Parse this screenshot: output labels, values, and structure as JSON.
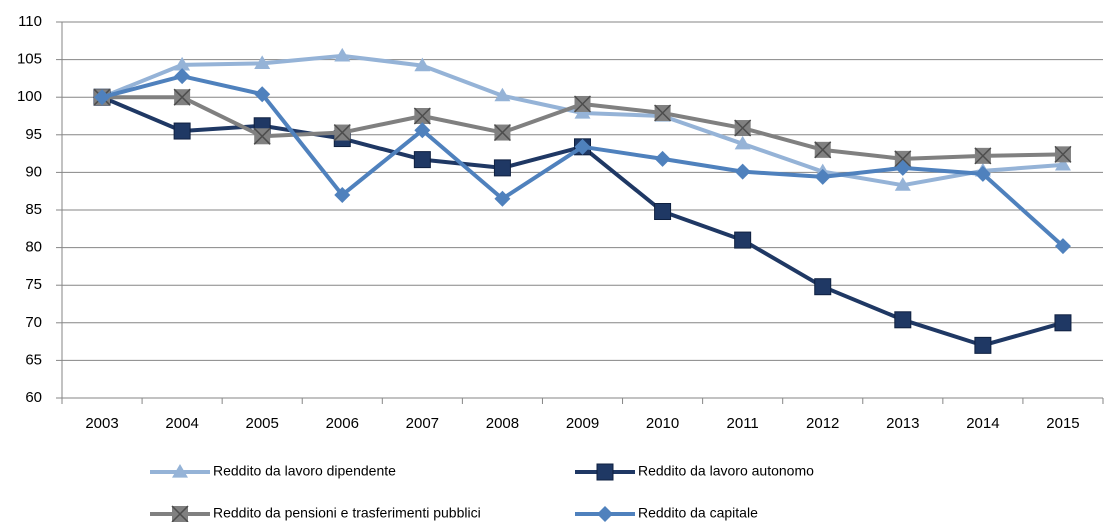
{
  "chart_data": {
    "type": "line",
    "categories": [
      "2003",
      "2004",
      "2005",
      "2006",
      "2007",
      "2008",
      "2009",
      "2010",
      "2011",
      "2012",
      "2013",
      "2014",
      "2015"
    ],
    "series": [
      {
        "name": "Reddito da lavoro dipendente",
        "color": "#95b3d7",
        "marker": "triangle",
        "values": [
          100,
          104.3,
          104.5,
          105.5,
          104.2,
          100.2,
          97.9,
          97.5,
          93.8,
          90.1,
          88.3,
          90.2,
          91.0
        ]
      },
      {
        "name": "Reddito da lavoro autonomo",
        "color": "#1f3864",
        "marker": "square",
        "values": [
          100,
          95.5,
          96.2,
          94.5,
          91.7,
          90.6,
          93.4,
          84.8,
          81.0,
          74.8,
          70.4,
          67.0,
          70.0
        ]
      },
      {
        "name": "Reddito da pensioni e trasferimenti pubblici",
        "color": "#808080",
        "marker": "square-x",
        "values": [
          100,
          100,
          94.8,
          95.3,
          97.5,
          95.3,
          99.1,
          97.9,
          95.9,
          93.0,
          91.8,
          92.2,
          92.4
        ]
      },
      {
        "name": "Reddito da capitale",
        "color": "#4f81bd",
        "marker": "diamond",
        "values": [
          100,
          102.8,
          100.4,
          87.0,
          95.6,
          86.5,
          93.4,
          91.8,
          90.1,
          89.4,
          90.6,
          89.8,
          80.2
        ]
      }
    ],
    "ylim": [
      60,
      110
    ],
    "yticks": [
      60,
      65,
      70,
      75,
      80,
      85,
      90,
      95,
      100,
      105,
      110
    ],
    "grid": true,
    "legend": "bottom"
  }
}
